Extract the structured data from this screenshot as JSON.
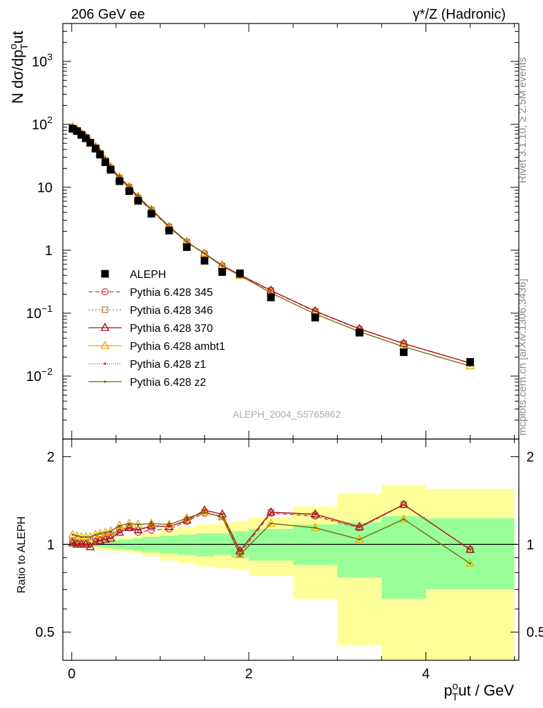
{
  "header": {
    "left": "206 GeV ee",
    "right": "γ*/Z (Hadronic)"
  },
  "side_text": {
    "rivet": "Rivet 3.1.10, ≥ 2.5M events",
    "mcplots": "mcplots.cern.ch [arXiv:1306.3436]"
  },
  "analysis_id": "ALEPH_2004_S5765862",
  "chart_data": [
    {
      "type": "line",
      "panel": "main",
      "ylabel": "N dσ/dp_T^out",
      "ylabel_main": "N dσ/dp",
      "ylabel_sup": "o",
      "ylabel_sub": "T",
      "ylabel_tail": "ut",
      "yscale": "log",
      "xlim": [
        -0.1,
        5.05
      ],
      "ylim": [
        0.001,
        4000
      ],
      "y_ticks": [
        {
          "v": 0.01,
          "base": "10",
          "exp": "−2"
        },
        {
          "v": 0.1,
          "base": "10",
          "exp": "−1"
        },
        {
          "v": 1,
          "base": "1",
          "exp": ""
        },
        {
          "v": 10,
          "base": "10",
          "exp": ""
        },
        {
          "v": 100,
          "base": "10",
          "exp": "2"
        },
        {
          "v": 1000,
          "base": "10",
          "exp": "3"
        }
      ],
      "x": [
        0.01,
        0.06,
        0.11,
        0.16,
        0.21,
        0.27,
        0.32,
        0.38,
        0.44,
        0.54,
        0.65,
        0.75,
        0.9,
        1.1,
        1.3,
        1.5,
        1.7,
        1.9,
        2.25,
        2.75,
        3.25,
        3.75,
        4.5
      ],
      "series": [
        {
          "name": "ALEPH",
          "color": "#000000",
          "marker": "square",
          "values": [
            85,
            78,
            68,
            60,
            51,
            41,
            33,
            25,
            19,
            12.5,
            8.7,
            6.1,
            3.8,
            2.05,
            1.12,
            0.68,
            0.45,
            0.43,
            0.178,
            0.085,
            0.049,
            0.024,
            0.0168
          ]
        },
        {
          "name": "Pythia 6.428 345",
          "color": "#cc3344",
          "marker": "circle",
          "dash": "6,4",
          "ratio": [
            1.02,
            1.01,
            1.01,
            1.01,
            1.02,
            1.05,
            1.06,
            1.06,
            1.07,
            1.12,
            1.14,
            1.1,
            1.12,
            1.13,
            1.2,
            1.28,
            1.25,
            0.93,
            1.28,
            1.25,
            1.14,
            1.37,
            0.96
          ]
        },
        {
          "name": "Pythia 6.428 346",
          "color": "#aa7733",
          "marker": "square-open",
          "dash": "2,3",
          "ratio": [
            1.03,
            1.01,
            1.01,
            1.01,
            1.02,
            1.05,
            1.06,
            1.07,
            1.08,
            1.13,
            1.15,
            1.12,
            1.15,
            1.15,
            1.21,
            1.29,
            1.25,
            0.94,
            1.29,
            1.26,
            1.14,
            1.37,
            0.96
          ]
        },
        {
          "name": "Pythia 6.428 370",
          "color": "#991122",
          "marker": "triangle-open",
          "dash": "",
          "ratio": [
            1.01,
            1.0,
            1.0,
            1.0,
            0.98,
            1.02,
            1.03,
            1.04,
            1.05,
            1.1,
            1.14,
            1.12,
            1.16,
            1.15,
            1.21,
            1.31,
            1.27,
            0.95,
            1.29,
            1.27,
            1.15,
            1.37,
            0.96
          ]
        },
        {
          "name": "Pythia 6.428 ambt1",
          "color": "#f2a800",
          "marker": "triangle-open",
          "dash": "",
          "ratio": [
            1.08,
            1.07,
            1.06,
            1.06,
            1.06,
            1.08,
            1.09,
            1.1,
            1.11,
            1.16,
            1.18,
            1.17,
            1.18,
            1.17,
            1.23,
            1.29,
            1.24,
            0.92,
            1.18,
            1.14,
            1.04,
            1.22,
            0.86
          ]
        },
        {
          "name": "Pythia 6.428 z1",
          "color": "#dd1111",
          "marker": "dot",
          "dash": "1,2",
          "ratio": [
            1.01,
            1.0,
            1.0,
            1.0,
            0.98,
            1.02,
            1.03,
            1.04,
            1.05,
            1.1,
            1.14,
            1.12,
            1.16,
            1.15,
            1.21,
            1.31,
            1.27,
            0.95,
            1.29,
            1.27,
            1.15,
            1.37,
            0.96
          ]
        },
        {
          "name": "Pythia 6.428 z2",
          "color": "#6b6b11",
          "marker": "dot",
          "dash": "",
          "ratio": [
            1.08,
            1.07,
            1.06,
            1.06,
            1.06,
            1.08,
            1.09,
            1.1,
            1.11,
            1.16,
            1.18,
            1.17,
            1.18,
            1.17,
            1.23,
            1.29,
            1.24,
            0.92,
            1.18,
            1.14,
            1.04,
            1.22,
            0.86
          ]
        }
      ]
    },
    {
      "type": "line",
      "panel": "ratio",
      "ylabel": "Ratio to ALEPH",
      "yscale": "log",
      "xlabel": "p_T^out / GeV",
      "xlabel_main": "p",
      "xlabel_sup": "o",
      "xlabel_sub": "T",
      "xlabel_tail": "ut / GeV",
      "xlim": [
        -0.1,
        5.05
      ],
      "ylim": [
        0.4,
        2.3
      ],
      "x_ticks": [
        {
          "v": 0,
          "label": "0"
        },
        {
          "v": 2,
          "label": "2"
        },
        {
          "v": 4,
          "label": "4"
        }
      ],
      "y_ticks": [
        {
          "v": 0.5,
          "label": "0.5"
        },
        {
          "v": 1,
          "label": "1"
        },
        {
          "v": 2,
          "label": "2"
        }
      ],
      "reference_line": 1,
      "bands": {
        "edges": [
          -0.015,
          0.035,
          0.085,
          0.135,
          0.185,
          0.24,
          0.295,
          0.35,
          0.41,
          0.49,
          0.595,
          0.7,
          0.8,
          1.0,
          1.2,
          1.4,
          1.6,
          1.8,
          2.0,
          2.5,
          3.0,
          3.5,
          4.0,
          5.0
        ],
        "stat": [
          [
            0.995,
            1.005
          ],
          [
            0.99,
            1.01
          ],
          [
            0.99,
            1.01
          ],
          [
            0.99,
            1.01
          ],
          [
            0.985,
            1.015
          ],
          [
            0.985,
            1.015
          ],
          [
            0.98,
            1.02
          ],
          [
            0.975,
            1.025
          ],
          [
            0.97,
            1.03
          ],
          [
            0.965,
            1.035
          ],
          [
            0.96,
            1.04
          ],
          [
            0.95,
            1.05
          ],
          [
            0.94,
            1.06
          ],
          [
            0.93,
            1.07
          ],
          [
            0.92,
            1.08
          ],
          [
            0.91,
            1.09
          ],
          [
            0.92,
            1.09
          ],
          [
            0.9,
            1.11
          ],
          [
            0.88,
            1.13
          ],
          [
            0.85,
            1.17
          ],
          [
            0.77,
            1.19
          ],
          [
            0.65,
            1.25
          ],
          [
            0.7,
            1.23
          ]
        ],
        "total": [
          [
            0.98,
            1.03
          ],
          [
            0.98,
            1.03
          ],
          [
            0.98,
            1.03
          ],
          [
            0.975,
            1.03
          ],
          [
            0.97,
            1.035
          ],
          [
            0.965,
            1.04
          ],
          [
            0.96,
            1.04
          ],
          [
            0.955,
            1.045
          ],
          [
            0.95,
            1.05
          ],
          [
            0.945,
            1.06
          ],
          [
            0.94,
            1.065
          ],
          [
            0.93,
            1.07
          ],
          [
            0.91,
            1.09
          ],
          [
            0.88,
            1.13
          ],
          [
            0.86,
            1.15
          ],
          [
            0.84,
            1.17
          ],
          [
            0.83,
            1.18
          ],
          [
            0.82,
            1.2
          ],
          [
            0.78,
            1.24
          ],
          [
            0.65,
            1.35
          ],
          [
            0.45,
            1.5
          ],
          [
            0.35,
            1.6
          ],
          [
            0.35,
            1.55
          ]
        ]
      }
    }
  ]
}
